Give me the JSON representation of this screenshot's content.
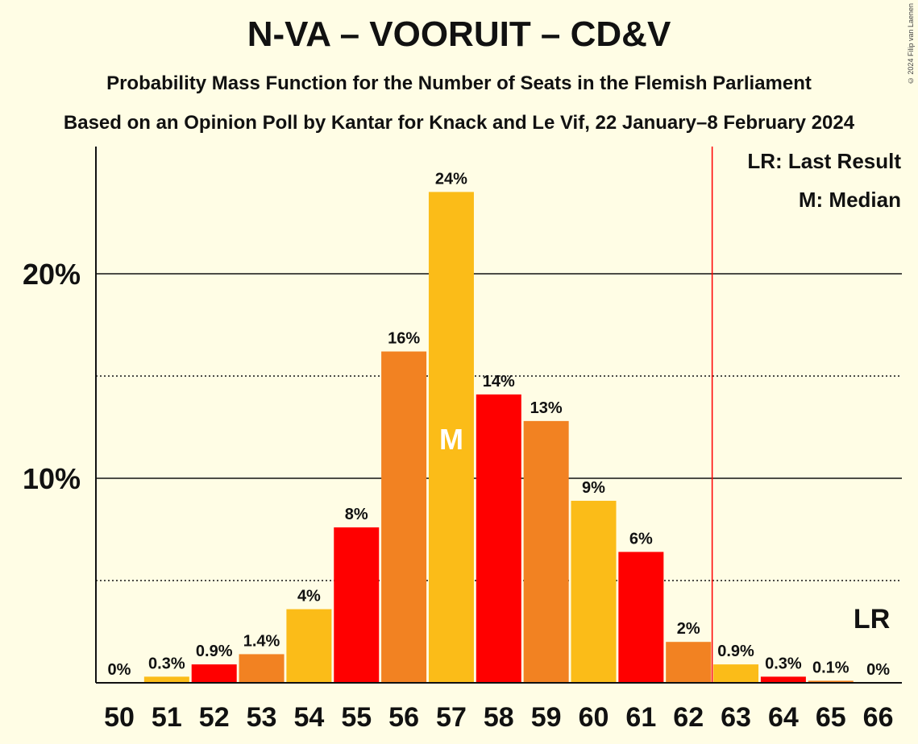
{
  "header": {
    "title": "N-VA – VOORUIT – CD&V",
    "subtitle1": "Probability Mass Function for the Number of Seats in the Flemish Parliament",
    "subtitle2": "Based on an Opinion Poll by Kantar for Knack and Le Vif, 22 January–8 February 2024",
    "copyright": "© 2024 Filip van Laenen"
  },
  "legend": {
    "lr": "LR: Last Result",
    "median": "M: Median"
  },
  "colors": {
    "red": "#FF0000",
    "orange": "#F28222",
    "yellow": "#FBBC18",
    "background": "#FFFDE5",
    "last_result_line": "#FF0000"
  },
  "chart_data": {
    "type": "bar",
    "categories": [
      "50",
      "51",
      "52",
      "53",
      "54",
      "55",
      "56",
      "57",
      "58",
      "59",
      "60",
      "61",
      "62",
      "63",
      "64",
      "65",
      "66"
    ],
    "values": [
      0,
      0.3,
      0.9,
      1.4,
      3.6,
      7.6,
      16.2,
      24.0,
      14.1,
      12.8,
      8.9,
      6.4,
      2.0,
      0.9,
      0.3,
      0.1,
      0
    ],
    "data_labels": [
      "0%",
      "0.3%",
      "0.9%",
      "1.4%",
      "4%",
      "8%",
      "16%",
      "24%",
      "14%",
      "13%",
      "9%",
      "6%",
      "2%",
      "0.9%",
      "0.3%",
      "0.1%",
      "0%"
    ],
    "bar_colors": [
      "yellow",
      "yellow",
      "red",
      "orange",
      "yellow",
      "red",
      "orange",
      "yellow",
      "red",
      "orange",
      "yellow",
      "red",
      "orange",
      "yellow",
      "red",
      "orange",
      "yellow"
    ],
    "ylim": [
      0,
      26.2
    ],
    "yticks": [
      {
        "value": 10,
        "label": "10%",
        "style": "solid"
      },
      {
        "value": 20,
        "label": "20%",
        "style": "solid"
      }
    ],
    "minor_gridlines": [
      5,
      15
    ],
    "median": "57",
    "median_label": "M",
    "last_result": "66",
    "last_result_label": "LR",
    "majority_line_between": [
      "62",
      "63"
    ]
  }
}
